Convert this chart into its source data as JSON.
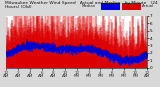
{
  "background_color": "#d8d8d8",
  "plot_bg_color": "#ffffff",
  "bar_color": "#dd0000",
  "median_color": "#0000cc",
  "ylim": [
    0,
    7
  ],
  "yticks": [
    0,
    1,
    2,
    3,
    4,
    5,
    6,
    7
  ],
  "n_points": 1440,
  "seed": 42,
  "grid_color": "#bbbbbb",
  "tick_label_fontsize": 3.0,
  "title_fontsize": 3.2,
  "legend_blue_color": "#0000dd",
  "legend_red_color": "#dd0000",
  "xtick_hours": [
    0,
    2,
    4,
    6,
    8,
    10,
    12,
    14,
    16,
    18,
    20,
    22,
    24
  ],
  "xtick_labels": [
    "12\nAM",
    "2\nAM",
    "4\nAM",
    "6\nAM",
    "8\nAM",
    "10\nAM",
    "12\nPM",
    "2\nPM",
    "4\nPM",
    "6\nPM",
    "8\nPM",
    "10\nPM",
    "12\nAM"
  ]
}
